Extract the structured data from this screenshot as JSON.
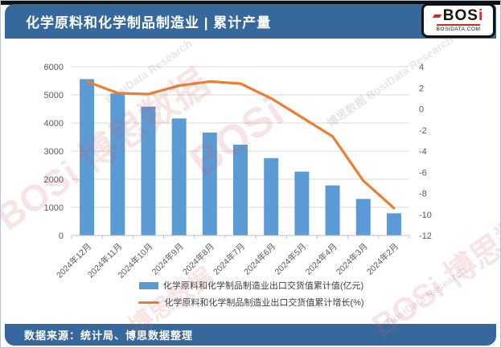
{
  "header": {
    "title": "化学原料和化学制品制造业 | 累计产量",
    "logo": {
      "brand": "BOS",
      "brand_i": "i",
      "domain": "BOSIDATA.COM"
    }
  },
  "footer": {
    "source": "数据来源：统计局、博思数据整理"
  },
  "watermark": {
    "brand": "BOSi",
    "cn": "博思数据",
    "en": "BosiData Research"
  },
  "chart_data": {
    "type": "bar",
    "subtype": "bar-line-combo",
    "categories": [
      "2024年12月",
      "2024年11月",
      "2024年10月",
      "2024年9月",
      "2024年8月",
      "2024年7月",
      "2024年6月",
      "2024年5月",
      "2024年4月",
      "2024年3月",
      "2024年2月"
    ],
    "series": [
      {
        "name": "化学原料和化学制品制造业出口交货值累计值(亿元)",
        "type": "bar",
        "axis": "left",
        "color": "#5B9BD5",
        "values": [
          5560,
          5050,
          4580,
          4160,
          3660,
          3230,
          2750,
          2270,
          1780,
          1300,
          790
        ]
      },
      {
        "name": "化学原料和化学制品制造业出口交货值累计增长(%)",
        "type": "line",
        "axis": "right",
        "color": "#ED7D31",
        "values": [
          2.6,
          1.5,
          1.4,
          2.2,
          2.6,
          2.4,
          1.0,
          -0.8,
          -2.6,
          -6.8,
          -9.4
        ]
      }
    ],
    "left_axis": {
      "min": 0,
      "max": 6000,
      "step": 1000
    },
    "right_axis": {
      "min": -12,
      "max": 4,
      "step": 2
    },
    "grid": true,
    "legend_position": "bottom",
    "colors": {
      "grid": "#d9d9d9",
      "axis_line": "#bfbfbf",
      "tick_text": "#595959"
    }
  }
}
